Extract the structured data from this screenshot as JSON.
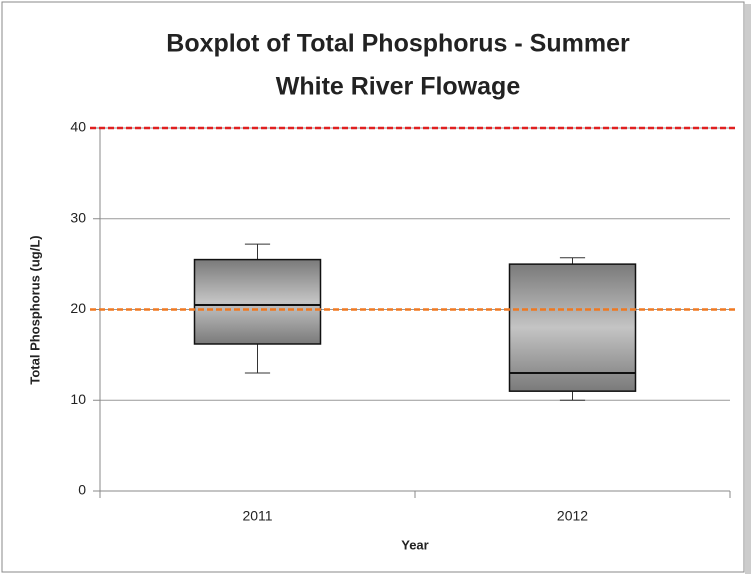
{
  "chart_data": {
    "type": "box",
    "title": [
      "Boxplot of Total Phosphorus - Summer",
      "White River Flowage"
    ],
    "x_label": "Year",
    "y_label": "Total Phosphorus (ug/L)",
    "categories": [
      "2011",
      "2012"
    ],
    "boxes": [
      {
        "min": 13,
        "q1": 16.2,
        "median": 20.5,
        "q3": 25.5,
        "max": 27.2
      },
      {
        "min": 10,
        "q1": 11,
        "median": 13,
        "q3": 25,
        "max": 25.7
      }
    ],
    "reference_lines": [
      {
        "value": 40,
        "color": "#e02020"
      },
      {
        "value": 20,
        "color": "#f07820"
      }
    ],
    "ylim": [
      0,
      40
    ],
    "yticks": [
      0,
      10,
      20,
      30,
      40
    ],
    "grid": true
  }
}
